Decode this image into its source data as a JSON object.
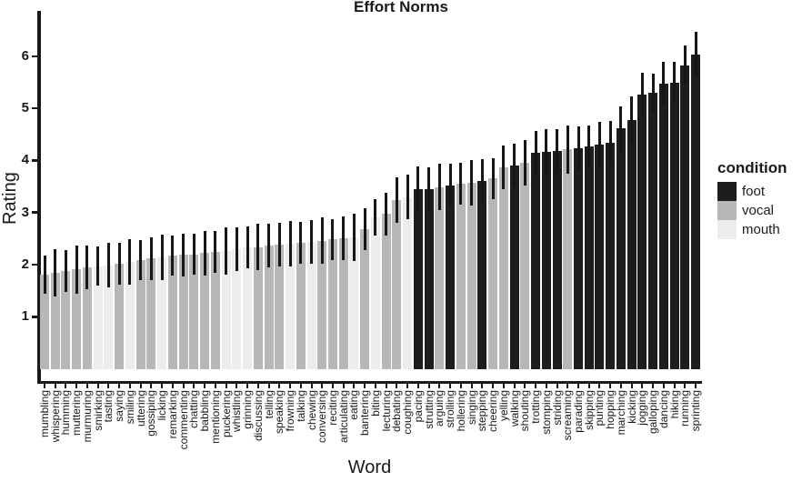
{
  "chart_data": {
    "type": "bar",
    "title": "Effort Norms",
    "xlabel": "Word",
    "ylabel": "Rating",
    "ylim": [
      0,
      6.85
    ],
    "yticks": [
      1,
      2,
      3,
      4,
      5,
      6
    ],
    "grid": false,
    "axis_color": "#1a1a1a",
    "legend": {
      "title": "condition",
      "position": "right",
      "entries": [
        {
          "label": "foot",
          "color": "#1d1d1d"
        },
        {
          "label": "vocal",
          "color": "#b7b7b7"
        },
        {
          "label": "mouth",
          "color": "#ececec"
        }
      ]
    },
    "bars": [
      {
        "word": "mumbling",
        "condition": "vocal",
        "rating": 1.81,
        "err": 0.36
      },
      {
        "word": "whispering",
        "condition": "vocal",
        "rating": 1.84,
        "err": 0.45
      },
      {
        "word": "humming",
        "condition": "vocal",
        "rating": 1.88,
        "err": 0.4
      },
      {
        "word": "muttering",
        "condition": "vocal",
        "rating": 1.91,
        "err": 0.46
      },
      {
        "word": "murmuring",
        "condition": "vocal",
        "rating": 1.94,
        "err": 0.42
      },
      {
        "word": "smirking",
        "condition": "mouth",
        "rating": 1.97,
        "err": 0.38
      },
      {
        "word": "tasting",
        "condition": "mouth",
        "rating": 1.99,
        "err": 0.43
      },
      {
        "word": "saying",
        "condition": "vocal",
        "rating": 2.02,
        "err": 0.4
      },
      {
        "word": "smiling",
        "condition": "mouth",
        "rating": 2.05,
        "err": 0.43
      },
      {
        "word": "uttering",
        "condition": "vocal",
        "rating": 2.09,
        "err": 0.38
      },
      {
        "word": "gossiping",
        "condition": "vocal",
        "rating": 2.12,
        "err": 0.41
      },
      {
        "word": "licking",
        "condition": "mouth",
        "rating": 2.14,
        "err": 0.43
      },
      {
        "word": "remarking",
        "condition": "vocal",
        "rating": 2.17,
        "err": 0.38
      },
      {
        "word": "commenting",
        "condition": "vocal",
        "rating": 2.19,
        "err": 0.41
      },
      {
        "word": "chatting",
        "condition": "vocal",
        "rating": 2.2,
        "err": 0.4
      },
      {
        "word": "babbling",
        "condition": "vocal",
        "rating": 2.22,
        "err": 0.43
      },
      {
        "word": "mentioning",
        "condition": "vocal",
        "rating": 2.24,
        "err": 0.4
      },
      {
        "word": "puckering",
        "condition": "mouth",
        "rating": 2.26,
        "err": 0.45
      },
      {
        "word": "whistling",
        "condition": "mouth",
        "rating": 2.3,
        "err": 0.42
      },
      {
        "word": "grinning",
        "condition": "mouth",
        "rating": 2.33,
        "err": 0.4
      },
      {
        "word": "discussing",
        "condition": "vocal",
        "rating": 2.34,
        "err": 0.45
      },
      {
        "word": "telling",
        "condition": "vocal",
        "rating": 2.36,
        "err": 0.42
      },
      {
        "word": "speaking",
        "condition": "vocal",
        "rating": 2.38,
        "err": 0.42
      },
      {
        "word": "frowning",
        "condition": "mouth",
        "rating": 2.4,
        "err": 0.44
      },
      {
        "word": "talking",
        "condition": "vocal",
        "rating": 2.42,
        "err": 0.4
      },
      {
        "word": "chewing",
        "condition": "mouth",
        "rating": 2.44,
        "err": 0.42
      },
      {
        "word": "conversing",
        "condition": "vocal",
        "rating": 2.46,
        "err": 0.45
      },
      {
        "word": "reciting",
        "condition": "vocal",
        "rating": 2.48,
        "err": 0.4
      },
      {
        "word": "articulating",
        "condition": "vocal",
        "rating": 2.5,
        "err": 0.42
      },
      {
        "word": "eating",
        "condition": "mouth",
        "rating": 2.52,
        "err": 0.45
      },
      {
        "word": "bantering",
        "condition": "vocal",
        "rating": 2.68,
        "err": 0.4
      },
      {
        "word": "biting",
        "condition": "mouth",
        "rating": 2.9,
        "err": 0.35
      },
      {
        "word": "lecturing",
        "condition": "vocal",
        "rating": 2.97,
        "err": 0.41
      },
      {
        "word": "debating",
        "condition": "vocal",
        "rating": 3.24,
        "err": 0.43
      },
      {
        "word": "coughing",
        "condition": "mouth",
        "rating": 3.3,
        "err": 0.42
      },
      {
        "word": "pacing",
        "condition": "foot",
        "rating": 3.44,
        "err": 0.45
      },
      {
        "word": "strutting",
        "condition": "foot",
        "rating": 3.45,
        "err": 0.42
      },
      {
        "word": "arguing",
        "condition": "vocal",
        "rating": 3.49,
        "err": 0.44
      },
      {
        "word": "strolling",
        "condition": "foot",
        "rating": 3.52,
        "err": 0.42
      },
      {
        "word": "hollering",
        "condition": "vocal",
        "rating": 3.55,
        "err": 0.4
      },
      {
        "word": "singing",
        "condition": "vocal",
        "rating": 3.57,
        "err": 0.44
      },
      {
        "word": "stepping",
        "condition": "foot",
        "rating": 3.61,
        "err": 0.42
      },
      {
        "word": "cheering",
        "condition": "vocal",
        "rating": 3.65,
        "err": 0.4
      },
      {
        "word": "yelling",
        "condition": "vocal",
        "rating": 3.87,
        "err": 0.42
      },
      {
        "word": "walking",
        "condition": "foot",
        "rating": 3.91,
        "err": 0.41
      },
      {
        "word": "shouting",
        "condition": "vocal",
        "rating": 3.95,
        "err": 0.44
      },
      {
        "word": "trotting",
        "condition": "foot",
        "rating": 4.14,
        "err": 0.42
      },
      {
        "word": "stomping",
        "condition": "foot",
        "rating": 4.16,
        "err": 0.44
      },
      {
        "word": "striding",
        "condition": "foot",
        "rating": 4.18,
        "err": 0.42
      },
      {
        "word": "screaming",
        "condition": "vocal",
        "rating": 4.21,
        "err": 0.46
      },
      {
        "word": "parading",
        "condition": "foot",
        "rating": 4.24,
        "err": 0.42
      },
      {
        "word": "skipping",
        "condition": "foot",
        "rating": 4.27,
        "err": 0.4
      },
      {
        "word": "punting",
        "condition": "foot",
        "rating": 4.3,
        "err": 0.44
      },
      {
        "word": "hopping",
        "condition": "foot",
        "rating": 4.33,
        "err": 0.42
      },
      {
        "word": "marching",
        "condition": "foot",
        "rating": 4.61,
        "err": 0.42
      },
      {
        "word": "kicking",
        "condition": "foot",
        "rating": 4.77,
        "err": 0.45
      },
      {
        "word": "jogging",
        "condition": "foot",
        "rating": 5.26,
        "err": 0.43
      },
      {
        "word": "galloping",
        "condition": "foot",
        "rating": 5.29,
        "err": 0.38
      },
      {
        "word": "dancing",
        "condition": "foot",
        "rating": 5.48,
        "err": 0.42
      },
      {
        "word": "hiking",
        "condition": "foot",
        "rating": 5.49,
        "err": 0.4
      },
      {
        "word": "running",
        "condition": "foot",
        "rating": 5.83,
        "err": 0.38
      },
      {
        "word": "sprinting",
        "condition": "foot",
        "rating": 6.04,
        "err": 0.42
      }
    ]
  }
}
